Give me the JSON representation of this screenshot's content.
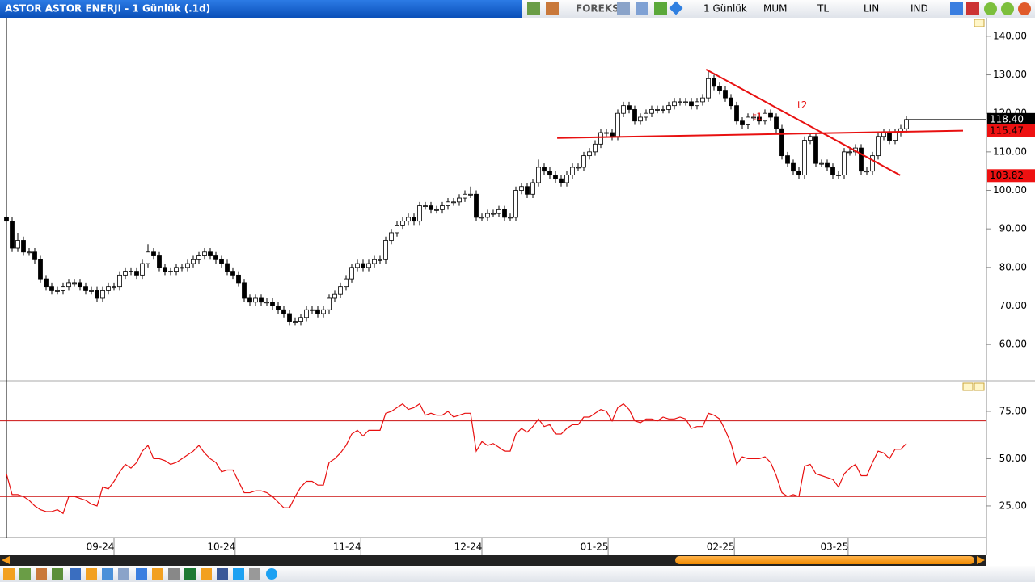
{
  "header": {
    "title": "ASTOR ASTOR ENERJI - 1 Günlük (.1d)",
    "toolbar": [
      "FOREKS",
      "1 Günlük",
      "MUM",
      "TL",
      "LIN",
      "IND"
    ]
  },
  "chart_data": [
    {
      "type": "candlestick",
      "open": [
        93,
        92,
        85,
        87,
        84,
        84,
        82,
        77,
        75,
        74,
        74,
        75,
        76,
        76,
        75,
        74,
        74,
        72,
        74,
        75,
        75,
        78,
        79,
        79,
        78,
        81,
        84,
        83,
        80,
        79,
        79,
        80,
        80,
        81,
        82,
        83,
        84,
        83,
        82,
        81,
        79,
        78,
        76,
        72,
        71,
        72,
        71,
        71,
        70,
        69,
        68,
        66,
        66,
        67,
        69,
        69,
        68,
        69,
        72,
        73,
        75,
        77,
        80,
        81,
        80,
        81,
        82,
        82,
        87,
        89,
        91,
        92,
        93,
        92,
        96,
        96,
        95,
        95,
        96,
        97,
        97,
        98,
        99,
        99,
        93,
        93,
        94,
        94,
        95,
        93,
        93,
        100,
        101,
        99,
        102,
        106,
        105,
        104,
        103,
        102,
        104,
        106,
        106,
        109,
        110,
        112,
        115,
        115,
        114,
        120,
        122,
        121,
        118,
        119,
        120,
        121,
        121,
        121,
        122,
        123,
        123,
        123,
        122,
        123,
        124,
        129,
        127,
        126,
        124,
        122,
        118,
        117,
        119,
        119,
        118,
        120,
        119,
        116,
        109,
        107,
        105,
        104,
        113,
        114,
        107,
        107,
        106,
        104,
        104,
        110,
        110,
        111,
        105,
        105,
        109,
        114,
        115,
        113,
        115,
        116
      ],
      "high": [
        94,
        93,
        89,
        88,
        85,
        85,
        83,
        78,
        76,
        75,
        76,
        77,
        77,
        77,
        76,
        75,
        75,
        75,
        76,
        76,
        79,
        80,
        80,
        80,
        82,
        86,
        85,
        84,
        81,
        80,
        81,
        81,
        82,
        83,
        84,
        85,
        85,
        84,
        83,
        82,
        80,
        79,
        77,
        73,
        73,
        73,
        72,
        72,
        71,
        70,
        69,
        67,
        68,
        70,
        70,
        70,
        70,
        73,
        74,
        76,
        78,
        81,
        82,
        82,
        82,
        83,
        83,
        88,
        90,
        92,
        93,
        94,
        94,
        97,
        97,
        97,
        96,
        97,
        98,
        98,
        99,
        100,
        101,
        100,
        94,
        95,
        95,
        96,
        96,
        94,
        101,
        102,
        102,
        103,
        108,
        107,
        106,
        105,
        104,
        105,
        107,
        107,
        110,
        111,
        113,
        116,
        116,
        116,
        121,
        123,
        123,
        122,
        120,
        121,
        122,
        122,
        122,
        123,
        124,
        124,
        124,
        124,
        124,
        125,
        131,
        130,
        128,
        127,
        125,
        123,
        119,
        120,
        120,
        120,
        121,
        121,
        120,
        117,
        110,
        108,
        106,
        114,
        115,
        115,
        108,
        108,
        107,
        105,
        111,
        111,
        112,
        112,
        106,
        110,
        115,
        116,
        116,
        116,
        117,
        119.4
      ],
      "low": [
        91,
        84,
        84,
        83,
        83,
        81,
        76,
        74,
        73,
        73,
        73,
        74,
        75,
        74,
        73,
        73,
        71,
        71,
        73,
        74,
        74,
        77,
        78,
        77,
        77,
        80,
        82,
        79,
        78,
        78,
        78,
        79,
        79,
        80,
        81,
        82,
        82,
        81,
        80,
        78,
        77,
        75,
        71,
        70,
        70,
        70,
        70,
        69,
        68,
        67,
        65,
        65,
        65,
        66,
        68,
        67,
        67,
        68,
        71,
        72,
        74,
        76,
        79,
        79,
        79,
        80,
        81,
        81,
        86,
        88,
        90,
        91,
        91,
        91,
        95,
        94,
        94,
        94,
        95,
        96,
        96,
        97,
        98,
        92,
        92,
        92,
        93,
        93,
        92,
        92,
        92,
        99,
        98,
        98,
        101,
        104,
        103,
        102,
        101,
        101,
        103,
        105,
        105,
        108,
        109,
        111,
        114,
        113,
        113,
        119,
        120,
        117,
        117,
        118,
        119,
        120,
        120,
        120,
        121,
        122,
        122,
        121,
        121,
        122,
        123,
        126,
        125,
        123,
        121,
        117,
        116,
        116,
        118,
        117,
        117,
        118,
        115,
        108,
        106,
        104,
        103,
        103,
        112,
        106,
        106,
        105,
        103,
        103,
        103,
        109,
        109,
        104,
        104,
        104,
        108,
        113,
        112,
        112,
        114,
        115
      ],
      "close": [
        92,
        85,
        87,
        84,
        84,
        82,
        77,
        75,
        74,
        74,
        75,
        76,
        76,
        75,
        74,
        74,
        72,
        74,
        75,
        75,
        78,
        79,
        79,
        78,
        81,
        84,
        83,
        80,
        79,
        79,
        80,
        80,
        81,
        82,
        83,
        84,
        83,
        82,
        81,
        79,
        78,
        76,
        72,
        71,
        72,
        71,
        71,
        70,
        69,
        68,
        66,
        66,
        67,
        69,
        69,
        68,
        69,
        72,
        73,
        75,
        77,
        80,
        81,
        80,
        81,
        82,
        82,
        87,
        89,
        91,
        92,
        93,
        92,
        96,
        96,
        95,
        95,
        96,
        97,
        97,
        98,
        99,
        99,
        93,
        93,
        94,
        94,
        95,
        93,
        93,
        100,
        101,
        99,
        102,
        106,
        105,
        104,
        103,
        102,
        104,
        106,
        106,
        109,
        110,
        112,
        115,
        115,
        114,
        120,
        122,
        121,
        118,
        119,
        120,
        121,
        121,
        121,
        122,
        123,
        123,
        123,
        122,
        123,
        124,
        129,
        127,
        126,
        124,
        122,
        118,
        117,
        119,
        119,
        118,
        120,
        119,
        116,
        109,
        107,
        105,
        104,
        113,
        114,
        107,
        107,
        106,
        104,
        104,
        110,
        110,
        111,
        105,
        105,
        109,
        114,
        115,
        113,
        115,
        116,
        118.4
      ],
      "ylim": [
        50.8,
        144.8
      ],
      "yticks": [
        {
          "value": 60,
          "label": "60.00"
        },
        {
          "value": 70,
          "label": "70.00"
        },
        {
          "value": 80,
          "label": "80.00"
        },
        {
          "value": 90,
          "label": "90.00"
        },
        {
          "value": 100,
          "label": "100.00"
        },
        {
          "value": 110,
          "label": "110.00"
        },
        {
          "value": 120,
          "label": "120.00"
        },
        {
          "value": 130,
          "label": "130.00"
        },
        {
          "value": 140,
          "label": "140.00"
        }
      ],
      "xticks": [
        {
          "value": 19,
          "label": "09-24"
        },
        {
          "value": 40.4,
          "label": "10-24"
        },
        {
          "value": 62.6,
          "label": "11-24"
        },
        {
          "value": 84,
          "label": "12-24"
        },
        {
          "value": 106.3,
          "label": "01-25"
        },
        {
          "value": 128.6,
          "label": "02-25"
        },
        {
          "value": 148.7,
          "label": "03-25"
        }
      ],
      "price_labels": [
        {
          "value": 118.4,
          "label": "118.40",
          "color": "#000000",
          "text_color": "#ffffff"
        },
        {
          "value": 115.47,
          "label": "115.47",
          "color": "#ee1111",
          "text_color": "#000000"
        },
        {
          "value": 103.82,
          "label": "103.82",
          "color": "#ee1111",
          "text_color": "#000000"
        }
      ],
      "trendlines": [
        {
          "x": [
            97.3,
            169
          ],
          "y": [
            113.6,
            115.5
          ],
          "color": "#e81010"
        },
        {
          "x": [
            123.6,
            157.9
          ],
          "y": [
            131.4,
            103.9
          ],
          "color": "#e81010"
        }
      ],
      "annotations": [
        {
          "text": "t2",
          "x": 140.6,
          "y": 122
        },
        {
          "text": "t1",
          "x": 132.7,
          "y": 119
        }
      ]
    },
    {
      "type": "line",
      "color": "#e81010",
      "values": [
        42,
        31,
        31,
        30,
        28,
        25,
        23,
        22,
        22,
        23,
        21,
        30,
        30,
        29,
        28,
        26,
        25,
        35,
        34,
        38,
        43,
        47,
        45,
        48,
        54,
        57,
        50,
        50,
        49,
        47,
        48,
        50,
        52,
        54,
        57,
        53,
        50,
        48,
        43,
        44,
        44,
        38,
        32,
        32,
        33,
        33,
        32,
        30,
        27,
        24,
        24,
        30,
        35,
        38,
        38,
        36,
        36,
        48,
        50,
        53,
        57,
        63,
        65,
        62,
        65,
        65,
        65,
        74,
        75,
        77,
        79,
        76,
        77,
        79,
        73,
        74,
        73,
        73,
        75,
        72,
        73,
        74,
        74,
        54,
        59,
        57,
        58,
        56,
        54,
        54,
        63,
        66,
        64,
        67,
        71,
        67,
        68,
        63,
        63,
        66,
        68,
        68,
        72,
        72,
        74,
        76,
        75,
        70,
        77,
        79,
        76,
        70,
        69,
        71,
        71,
        70,
        72,
        71,
        71,
        72,
        71,
        66,
        67,
        67,
        74,
        73,
        71,
        65,
        58,
        47,
        51,
        50,
        50,
        50,
        51,
        48,
        41,
        32,
        30,
        31,
        30,
        46,
        47,
        42,
        41,
        40,
        39,
        35,
        42,
        45,
        47,
        41,
        41,
        48,
        54,
        53,
        50,
        55,
        55,
        58
      ],
      "ylim": [
        8.3,
        90.8
      ],
      "yticks": [
        {
          "value": 25,
          "label": "25.00"
        },
        {
          "value": 50,
          "label": "50.00"
        },
        {
          "value": 75,
          "label": "75.00"
        }
      ],
      "levels": [
        30,
        70
      ]
    }
  ]
}
